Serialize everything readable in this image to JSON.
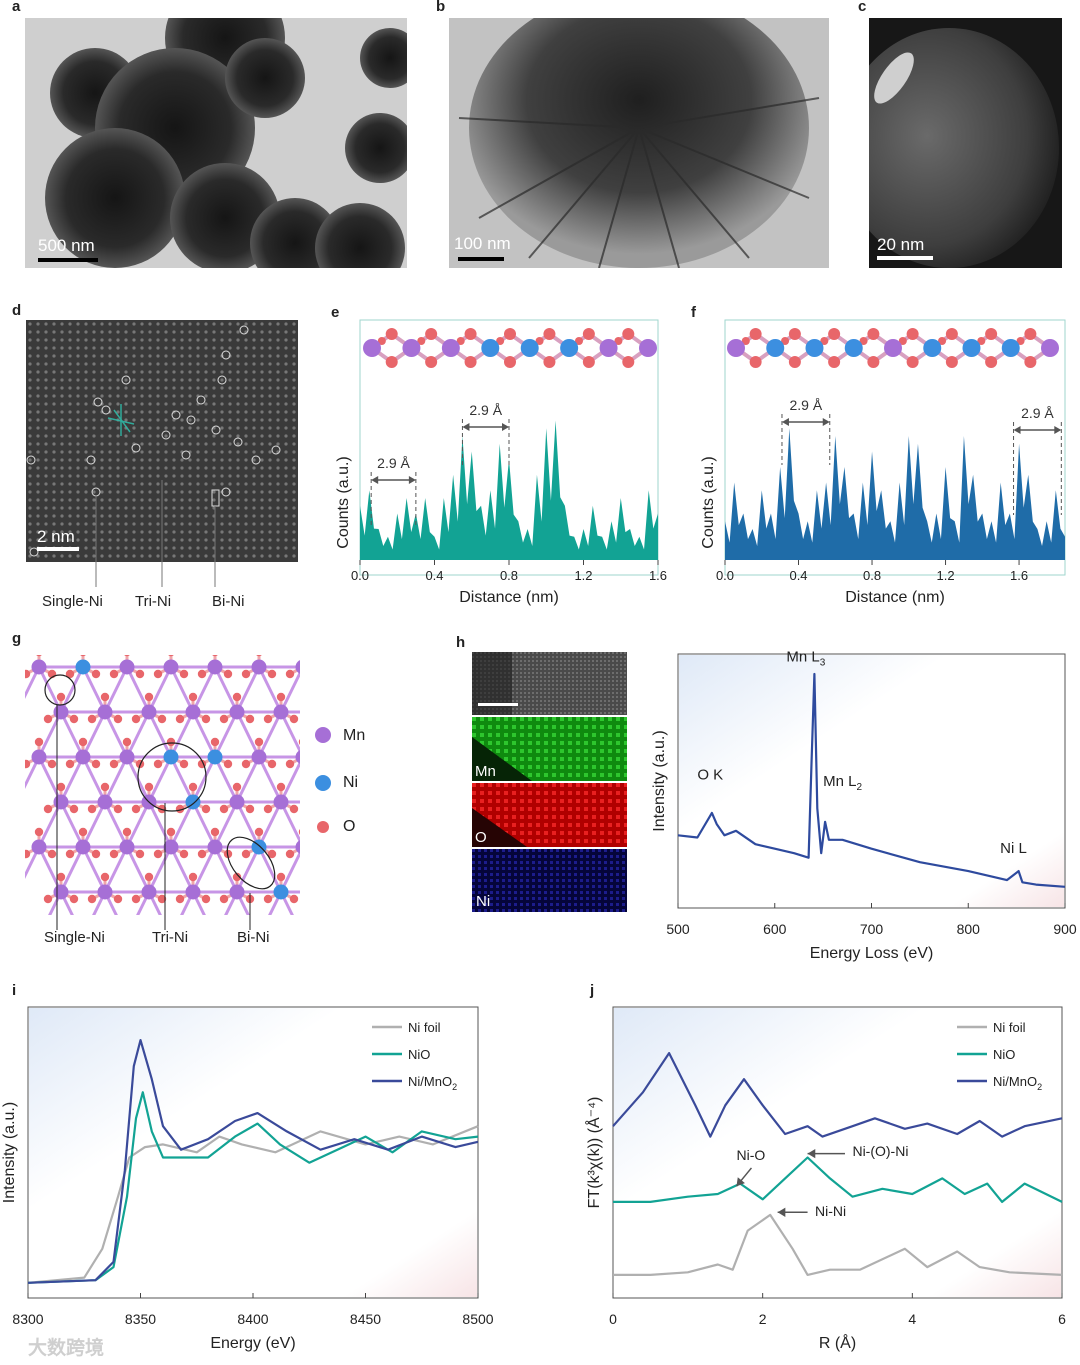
{
  "panels": {
    "a": {
      "label": "a",
      "scale": "500 nm"
    },
    "b": {
      "label": "b",
      "scale": "100 nm"
    },
    "c": {
      "label": "c",
      "scale": "20 nm"
    },
    "d": {
      "label": "d",
      "scale": "2 nm",
      "annotations": [
        "Single-Ni",
        "Tri-Ni",
        "Bi-Ni"
      ]
    },
    "e": {
      "label": "e"
    },
    "f": {
      "label": "f"
    },
    "g": {
      "label": "g",
      "annotations": [
        "Single-Ni",
        "Tri-Ni",
        "Bi-Ni"
      ],
      "legend": [
        "Mn",
        "Ni",
        "O"
      ]
    },
    "h": {
      "label": "h",
      "maps": [
        "Mn",
        "O",
        "Ni"
      ]
    },
    "i": {
      "label": "i"
    },
    "j": {
      "label": "j"
    }
  },
  "colors": {
    "mn": "#a66fd6",
    "ni": "#3c8fe0",
    "o": "#e8666a",
    "teal": "#12a394",
    "navy": "#3a4a9a",
    "gray": "#b0b0b0",
    "blue_profile": "#1f6ca8"
  },
  "watermark": "大数跨境",
  "chart_data": [
    {
      "id": "e",
      "type": "area",
      "xlabel": "Distance (nm)",
      "ylabel": "Counts (a.u.)",
      "xlim": [
        0,
        1.6
      ],
      "ticks": [
        "0.0",
        "0.4",
        "0.8",
        "1.2",
        "1.6"
      ],
      "annotations": [
        "2.9 Å",
        "2.9 Å"
      ],
      "x": [
        0.0,
        0.05,
        0.1,
        0.15,
        0.2,
        0.25,
        0.3,
        0.35,
        0.4,
        0.45,
        0.5,
        0.55,
        0.6,
        0.65,
        0.7,
        0.75,
        0.8,
        0.85,
        0.9,
        0.95,
        1.0,
        1.05,
        1.1,
        1.15,
        1.2,
        1.25,
        1.3,
        1.35,
        1.4,
        1.45,
        1.5,
        1.55,
        1.6
      ],
      "y": [
        0.35,
        0.45,
        0.2,
        0.15,
        0.3,
        0.4,
        0.3,
        0.4,
        0.15,
        0.4,
        0.55,
        0.8,
        0.7,
        0.35,
        0.45,
        0.75,
        0.65,
        0.25,
        0.2,
        0.55,
        0.85,
        0.9,
        0.35,
        0.15,
        0.2,
        0.35,
        0.15,
        0.25,
        0.4,
        0.2,
        0.15,
        0.45,
        0.3
      ]
    },
    {
      "id": "f",
      "type": "area",
      "xlabel": "Distance (nm)",
      "ylabel": "Counts (a.u.)",
      "xlim": [
        0,
        1.85
      ],
      "ticks": [
        "0.0",
        "0.4",
        "0.8",
        "1.2",
        "1.6"
      ],
      "annotations": [
        "2.9 Å",
        "2.9 Å"
      ],
      "x": [
        0.0,
        0.05,
        0.1,
        0.15,
        0.2,
        0.25,
        0.3,
        0.35,
        0.4,
        0.45,
        0.5,
        0.55,
        0.6,
        0.65,
        0.7,
        0.75,
        0.8,
        0.85,
        0.9,
        0.95,
        1.0,
        1.05,
        1.1,
        1.15,
        1.2,
        1.25,
        1.3,
        1.35,
        1.4,
        1.45,
        1.5,
        1.55,
        1.6,
        1.65,
        1.7,
        1.75,
        1.8,
        1.85
      ],
      "y": [
        0.25,
        0.5,
        0.3,
        0.2,
        0.45,
        0.3,
        0.6,
        0.85,
        0.3,
        0.25,
        0.45,
        0.5,
        0.8,
        0.6,
        0.3,
        0.5,
        0.7,
        0.45,
        0.25,
        0.5,
        0.8,
        0.75,
        0.25,
        0.3,
        0.6,
        0.25,
        0.8,
        0.55,
        0.3,
        0.25,
        0.5,
        0.3,
        0.75,
        0.55,
        0.2,
        0.25,
        0.45,
        0.15
      ]
    },
    {
      "id": "h",
      "type": "line",
      "xlabel": "Energy Loss (eV)",
      "ylabel": "Intensity (a.u.)",
      "xlim": [
        500,
        900
      ],
      "ticks": [
        "500",
        "600",
        "700",
        "800",
        "900"
      ],
      "annotations": {
        "ok": "O K",
        "mnl3_base": "Mn L",
        "mnl3_sub": "3",
        "mnl2_base": "Mn L",
        "mnl2_sub": "2",
        "nil": "Ni L"
      },
      "series": [
        {
          "x": [
            500,
            520,
            535,
            540,
            548,
            560,
            580,
            600,
            620,
            635,
            638,
            641,
            644,
            648,
            652,
            656,
            670,
            700,
            750,
            800,
            840,
            852,
            856,
            870,
            900
          ],
          "y": [
            0.28,
            0.27,
            0.38,
            0.33,
            0.28,
            0.3,
            0.24,
            0.22,
            0.2,
            0.18,
            0.6,
            1.0,
            0.4,
            0.2,
            0.34,
            0.26,
            0.26,
            0.22,
            0.16,
            0.12,
            0.08,
            0.12,
            0.07,
            0.06,
            0.05
          ]
        }
      ]
    },
    {
      "id": "i",
      "type": "line",
      "xlabel": "Energy (eV)",
      "ylabel": "Intensity (a.u.)",
      "xlim": [
        8300,
        8500
      ],
      "ticks": [
        "8300",
        "8350",
        "8400",
        "8450",
        "8500"
      ],
      "legend": "top-right",
      "series": [
        {
          "name": "Ni foil",
          "x": [
            8300,
            8325,
            8333,
            8340,
            8345,
            8352,
            8360,
            8375,
            8385,
            8395,
            8410,
            8430,
            8450,
            8465,
            8480,
            8500
          ],
          "y": [
            0.02,
            0.04,
            0.15,
            0.35,
            0.5,
            0.54,
            0.55,
            0.52,
            0.58,
            0.55,
            0.52,
            0.6,
            0.55,
            0.58,
            0.55,
            0.62
          ]
        },
        {
          "name": "NiO",
          "x": [
            8300,
            8330,
            8338,
            8344,
            8348,
            8351,
            8355,
            8360,
            8370,
            8380,
            8392,
            8402,
            8412,
            8425,
            8440,
            8450,
            8462,
            8475,
            8490,
            8500
          ],
          "y": [
            0.02,
            0.03,
            0.08,
            0.35,
            0.65,
            0.75,
            0.6,
            0.5,
            0.5,
            0.5,
            0.58,
            0.63,
            0.55,
            0.48,
            0.54,
            0.58,
            0.52,
            0.6,
            0.57,
            0.58
          ]
        },
        {
          "name": "Ni/MnO2",
          "x": [
            8300,
            8330,
            8338,
            8343,
            8347,
            8350,
            8355,
            8360,
            8368,
            8380,
            8392,
            8402,
            8415,
            8430,
            8445,
            8460,
            8475,
            8490,
            8500
          ],
          "y": [
            0.02,
            0.03,
            0.1,
            0.45,
            0.85,
            0.95,
            0.8,
            0.62,
            0.53,
            0.57,
            0.64,
            0.67,
            0.6,
            0.53,
            0.57,
            0.53,
            0.58,
            0.54,
            0.56
          ]
        }
      ]
    },
    {
      "id": "j",
      "type": "line",
      "xlabel": "R (Å)",
      "ylabel": "FT(k³χ(k)) (Å⁻⁴)",
      "xlim": [
        0,
        6
      ],
      "ticks": [
        "0",
        "2",
        "4",
        "6"
      ],
      "legend": "top-right",
      "annotations": [
        "Ni-O",
        "Ni-(O)-Ni",
        "Ni-Ni"
      ],
      "series": [
        {
          "name": "Ni foil",
          "x": [
            0,
            0.5,
            1.0,
            1.4,
            1.6,
            1.8,
            2.1,
            2.4,
            2.6,
            2.9,
            3.3,
            3.9,
            4.2,
            4.6,
            4.9,
            5.3,
            6.0
          ],
          "y": [
            0.05,
            0.05,
            0.06,
            0.09,
            0.07,
            0.22,
            0.28,
            0.15,
            0.05,
            0.07,
            0.07,
            0.15,
            0.08,
            0.14,
            0.08,
            0.06,
            0.05
          ]
        },
        {
          "name": "NiO",
          "x": [
            0,
            0.5,
            1.0,
            1.4,
            1.7,
            2.0,
            2.3,
            2.6,
            2.9,
            3.2,
            3.6,
            4.0,
            4.4,
            4.7,
            5.0,
            5.2,
            5.5,
            6.0
          ],
          "y": [
            0.33,
            0.33,
            0.35,
            0.36,
            0.4,
            0.34,
            0.42,
            0.5,
            0.42,
            0.35,
            0.38,
            0.36,
            0.42,
            0.36,
            0.4,
            0.33,
            0.4,
            0.33
          ]
        },
        {
          "name": "Ni/MnO2",
          "x": [
            0,
            0.4,
            0.75,
            1.1,
            1.3,
            1.5,
            1.75,
            2.0,
            2.3,
            2.6,
            2.8,
            3.2,
            3.5,
            3.9,
            4.2,
            4.6,
            4.9,
            5.2,
            5.5,
            6.0
          ],
          "y": [
            0.62,
            0.75,
            0.9,
            0.7,
            0.58,
            0.7,
            0.8,
            0.7,
            0.59,
            0.62,
            0.58,
            0.62,
            0.65,
            0.61,
            0.63,
            0.59,
            0.64,
            0.58,
            0.62,
            0.65
          ]
        }
      ]
    }
  ]
}
